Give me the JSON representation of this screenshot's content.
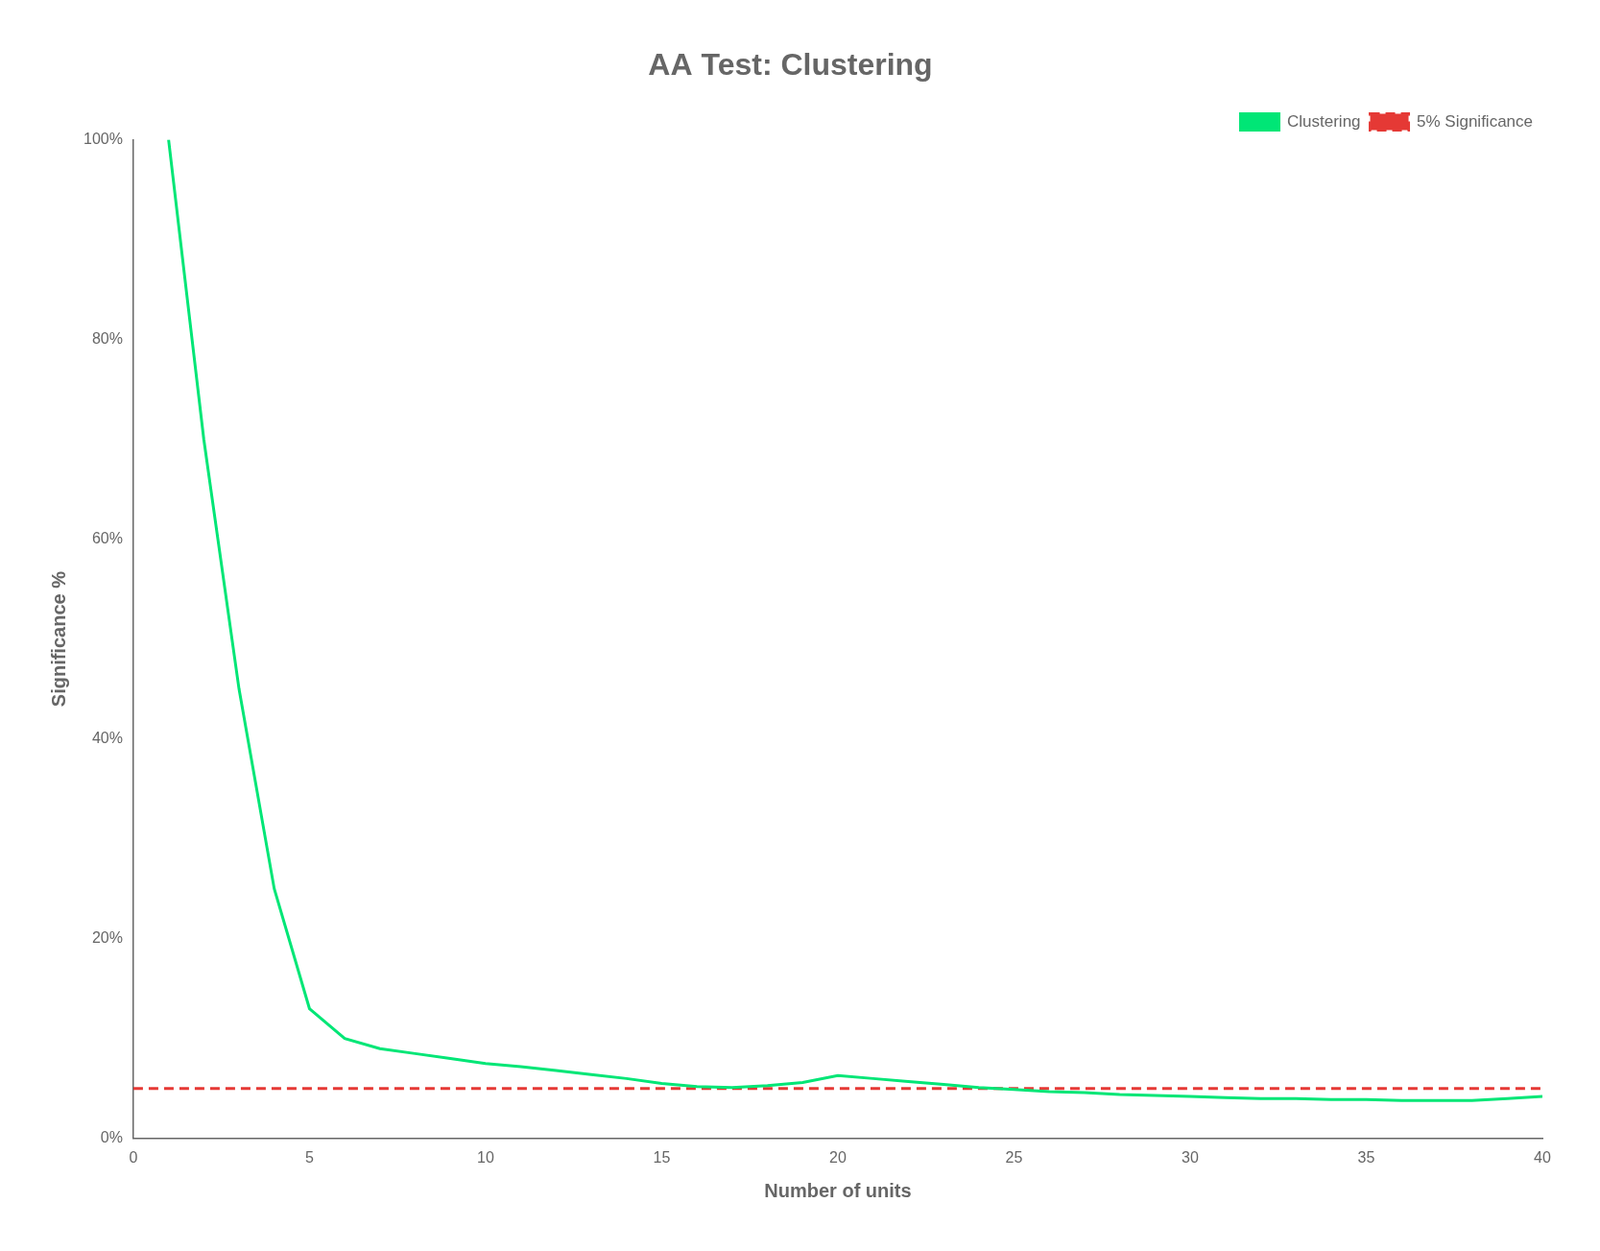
{
  "chart_data": {
    "type": "line",
    "title": "AA Test: Clustering",
    "xlabel": "Number of units",
    "ylabel": "Significance %",
    "x": [
      1,
      2,
      3,
      4,
      5,
      6,
      7,
      8,
      9,
      10,
      11,
      12,
      13,
      14,
      15,
      16,
      17,
      18,
      19,
      20,
      21,
      22,
      23,
      24,
      25,
      26,
      27,
      28,
      29,
      30,
      31,
      32,
      33,
      34,
      35,
      36,
      37,
      38,
      39,
      40
    ],
    "series": [
      {
        "name": "Clustering",
        "color": "#00e676",
        "line_style": "solid",
        "values": [
          1.0,
          0.7,
          0.45,
          0.25,
          0.13,
          0.1,
          0.09,
          0.085,
          0.08,
          0.075,
          0.072,
          0.068,
          0.064,
          0.06,
          0.055,
          0.052,
          0.051,
          0.053,
          0.056,
          0.063,
          0.06,
          0.057,
          0.054,
          0.051,
          0.049,
          0.047,
          0.046,
          0.044,
          0.043,
          0.042,
          0.041,
          0.04,
          0.04,
          0.039,
          0.039,
          0.038,
          0.038,
          0.038,
          0.04,
          0.042
        ]
      },
      {
        "name": "5% Significance",
        "color": "#e53935",
        "line_style": "dashed",
        "x": [
          0,
          40
        ],
        "values": [
          0.05,
          0.05
        ]
      }
    ],
    "xlim": [
      0,
      40
    ],
    "xticks": [
      0,
      5,
      10,
      15,
      20,
      25,
      30,
      35,
      40
    ],
    "ylim": [
      0,
      1.0
    ],
    "yticks": [
      {
        "value": 0,
        "label": "0%"
      },
      {
        "value": 0.2,
        "label": "20%"
      },
      {
        "value": 0.4,
        "label": "40%"
      },
      {
        "value": 0.6,
        "label": "60%"
      },
      {
        "value": 0.8,
        "label": "80%"
      },
      {
        "value": 1.0,
        "label": "100%"
      }
    ],
    "grid": false,
    "legend": "upper right"
  }
}
